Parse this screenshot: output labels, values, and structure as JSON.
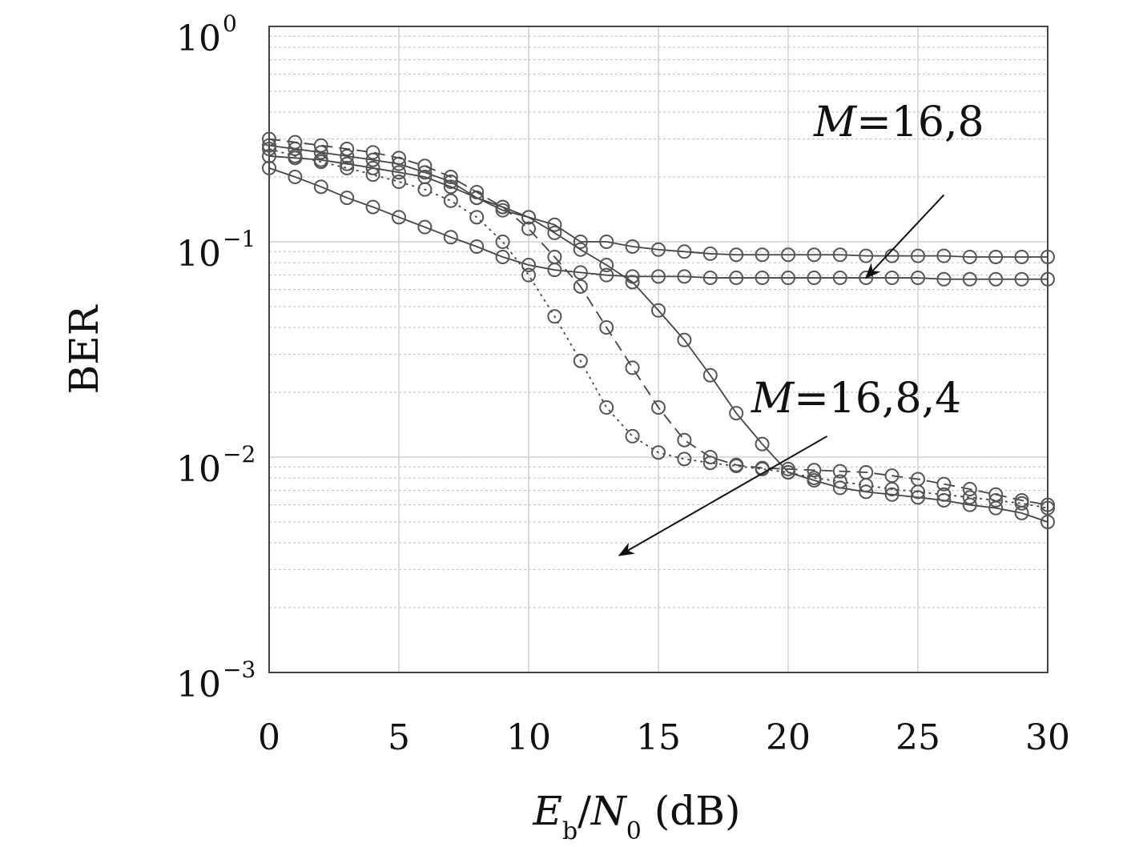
{
  "chart_data": {
    "type": "line",
    "ylabel": "BER",
    "xlabel": {
      "E": "E",
      "b_sub": "b",
      "slash": "/",
      "N": "N",
      "zero_sub": "0",
      "unit": " (dB)"
    },
    "xlim": [
      0,
      30
    ],
    "ylim": [
      0.001,
      1
    ],
    "yscale": "log",
    "grid": true,
    "x_ticks": [
      "0",
      "5",
      "10",
      "15",
      "20",
      "25",
      "30"
    ],
    "y_ticks": [
      {
        "base": "10",
        "exp": "0"
      },
      {
        "base": "10",
        "exp": "−1"
      },
      {
        "base": "10",
        "exp": "−2"
      },
      {
        "base": "10",
        "exp": "−3"
      }
    ],
    "x": [
      0,
      1,
      2,
      3,
      4,
      5,
      6,
      7,
      8,
      9,
      10,
      11,
      12,
      13,
      14,
      15,
      16,
      17,
      18,
      19,
      20,
      21,
      22,
      23,
      24,
      25,
      26,
      27,
      28,
      29,
      30
    ],
    "series": [
      {
        "style": "solid",
        "values": [
          0.28,
          0.27,
          0.26,
          0.25,
          0.24,
          0.23,
          0.21,
          0.19,
          0.16,
          0.14,
          0.13,
          0.12,
          0.1,
          0.1,
          0.095,
          0.092,
          0.09,
          0.088,
          0.087,
          0.087,
          0.087,
          0.087,
          0.087,
          0.086,
          0.086,
          0.086,
          0.086,
          0.085,
          0.085,
          0.085,
          0.085
        ]
      },
      {
        "style": "solid",
        "values": [
          0.22,
          0.2,
          0.18,
          0.16,
          0.145,
          0.13,
          0.117,
          0.105,
          0.095,
          0.085,
          0.078,
          0.074,
          0.072,
          0.07,
          0.069,
          0.069,
          0.069,
          0.068,
          0.068,
          0.068,
          0.068,
          0.068,
          0.068,
          0.068,
          0.068,
          0.068,
          0.067,
          0.067,
          0.067,
          0.067,
          0.067
        ]
      },
      {
        "style": "solid",
        "values": [
          0.25,
          0.245,
          0.24,
          0.23,
          0.22,
          0.21,
          0.2,
          0.18,
          0.16,
          0.145,
          0.13,
          0.11,
          0.092,
          0.078,
          0.065,
          0.048,
          0.035,
          0.024,
          0.016,
          0.0115,
          0.0085,
          0.0078,
          0.0072,
          0.0069,
          0.0067,
          0.0065,
          0.0063,
          0.006,
          0.0058,
          0.0055,
          0.005
        ]
      },
      {
        "style": "dashed",
        "values": [
          0.3,
          0.29,
          0.28,
          0.27,
          0.26,
          0.245,
          0.225,
          0.2,
          0.17,
          0.145,
          0.115,
          0.085,
          0.062,
          0.04,
          0.026,
          0.017,
          0.012,
          0.01,
          0.0092,
          0.0089,
          0.0088,
          0.0087,
          0.0086,
          0.0085,
          0.0082,
          0.0079,
          0.0075,
          0.0071,
          0.0067,
          0.0063,
          0.006
        ]
      },
      {
        "style": "dotted",
        "values": [
          0.27,
          0.25,
          0.235,
          0.22,
          0.205,
          0.19,
          0.175,
          0.155,
          0.13,
          0.1,
          0.07,
          0.045,
          0.028,
          0.017,
          0.0125,
          0.0105,
          0.0098,
          0.0094,
          0.0091,
          0.0088,
          0.0085,
          0.008,
          0.0077,
          0.0074,
          0.0071,
          0.0069,
          0.0067,
          0.0065,
          0.0063,
          0.0061,
          0.0058
        ]
      }
    ],
    "annotations": [
      {
        "label_M": "M",
        "label_rest": "=16,8",
        "arrow_from": [
          26.0,
          0.165
        ],
        "arrow_to": [
          23.0,
          0.068
        ]
      },
      {
        "label_M": "M",
        "label_rest": "=16,8,4",
        "arrow_from": [
          21.5,
          0.0125
        ],
        "arrow_to": [
          13.5,
          0.0035
        ]
      }
    ]
  }
}
